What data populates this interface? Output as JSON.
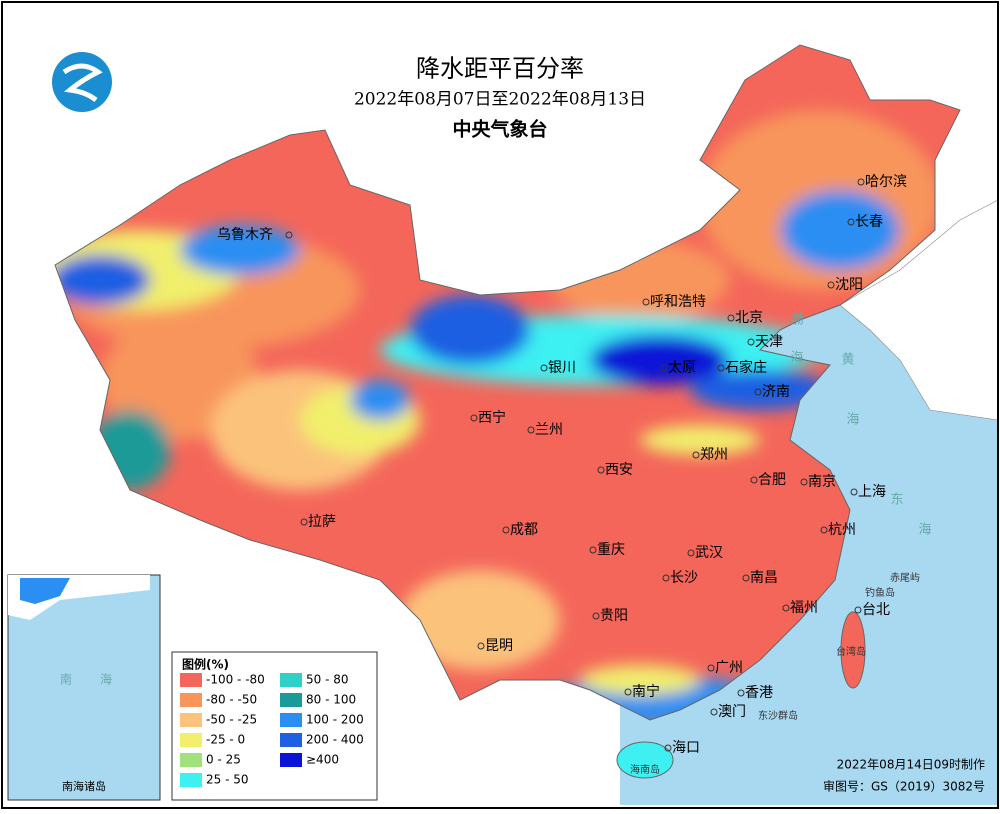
{
  "header": {
    "title": "降水距平百分率",
    "date_range": "2022年08月07日至2022年08月13日",
    "organization": "中央气象台"
  },
  "cities": [
    {
      "label": "哈尔滨"
    },
    {
      "label": "长春"
    },
    {
      "label": "沈阳"
    },
    {
      "label": "呼和浩特"
    },
    {
      "label": "北京"
    },
    {
      "label": "天津"
    },
    {
      "label": "石家庄"
    },
    {
      "label": "太原"
    },
    {
      "label": "济南"
    },
    {
      "label": "银川"
    },
    {
      "label": "西宁"
    },
    {
      "label": "兰州"
    },
    {
      "label": "乌鲁木齐"
    },
    {
      "label": "郑州"
    },
    {
      "label": "西安"
    },
    {
      "label": "合肥"
    },
    {
      "label": "南京"
    },
    {
      "label": "上海"
    },
    {
      "label": "杭州"
    },
    {
      "label": "成都"
    },
    {
      "label": "重庆"
    },
    {
      "label": "武汉"
    },
    {
      "label": "拉萨"
    },
    {
      "label": "长沙"
    },
    {
      "label": "南昌"
    },
    {
      "label": "福州"
    },
    {
      "label": "台北"
    },
    {
      "label": "贵阳"
    },
    {
      "label": "昆明"
    },
    {
      "label": "广州"
    },
    {
      "label": "南宁"
    },
    {
      "label": "香港"
    },
    {
      "label": "澳门"
    },
    {
      "label": "海口"
    }
  ],
  "places": [
    {
      "label": "渤"
    },
    {
      "label": "海"
    },
    {
      "label": "黄"
    },
    {
      "label": "海"
    },
    {
      "label": "东"
    },
    {
      "label": "海"
    },
    {
      "label": "赤尾屿"
    },
    {
      "label": "钓鱼岛"
    },
    {
      "label": "台湾岛"
    },
    {
      "label": "东沙群岛"
    },
    {
      "label": "海南岛"
    }
  ],
  "legend": {
    "title": "图例(%)",
    "items": [
      {
        "label": "-100 - -80",
        "color": "#f4665a"
      },
      {
        "label": "-80 - -50",
        "color": "#f8955b"
      },
      {
        "label": "-50 - -25",
        "color": "#fbc27c"
      },
      {
        "label": "-25 - 0",
        "color": "#f1ef6c"
      },
      {
        "label": "0 - 25",
        "color": "#9fe27c"
      },
      {
        "label": "25 - 50",
        "color": "#3ef0f2"
      },
      {
        "label": "50 - 80",
        "color": "#2fd0c8"
      },
      {
        "label": "80 - 100",
        "color": "#1a9a98"
      },
      {
        "label": "100 - 200",
        "color": "#2a8ef2"
      },
      {
        "label": "200 - 400",
        "color": "#1f5fe2"
      },
      {
        "label": "≥400",
        "color": "#0a14d6"
      }
    ]
  },
  "inset": {
    "label": "南海诸岛",
    "sea": "南",
    "sea2": "海"
  },
  "footer": {
    "made": "2022年08月14日09时制作",
    "approval": "审图号：GS（2019）3082号"
  }
}
